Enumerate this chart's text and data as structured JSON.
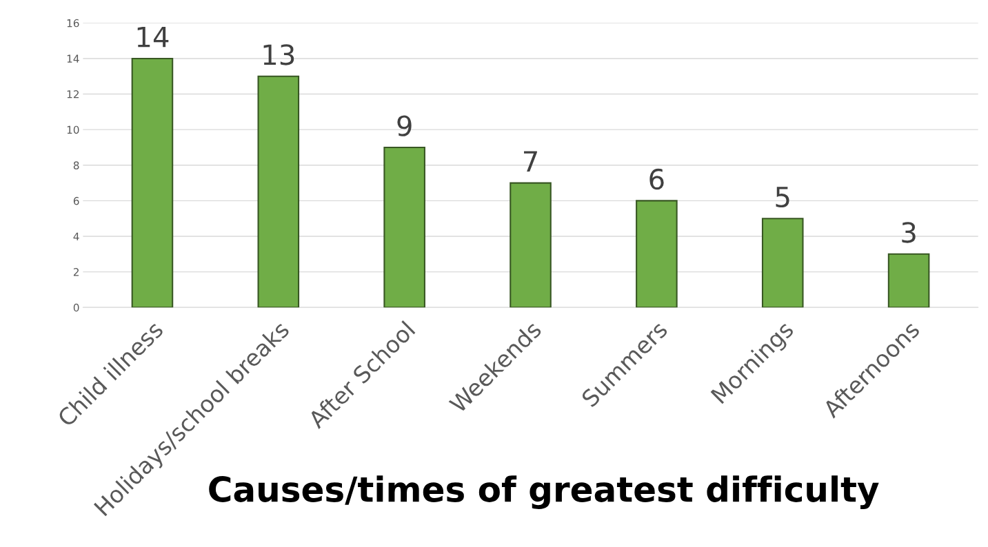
{
  "chart_data": {
    "type": "bar",
    "title": "Causes/times of greatest difficulty",
    "categories": [
      "Child illness",
      "Holidays/school breaks",
      "After School",
      "Weekends",
      "Summers",
      "Mornings",
      "Afternoons"
    ],
    "values": [
      14,
      13,
      9,
      7,
      6,
      5,
      3
    ],
    "color": "#70ad47",
    "ylim": [
      0,
      16
    ],
    "yticks": [
      0,
      2,
      4,
      6,
      8,
      10,
      12,
      14,
      16
    ],
    "grid": "y",
    "data_labels": true
  }
}
